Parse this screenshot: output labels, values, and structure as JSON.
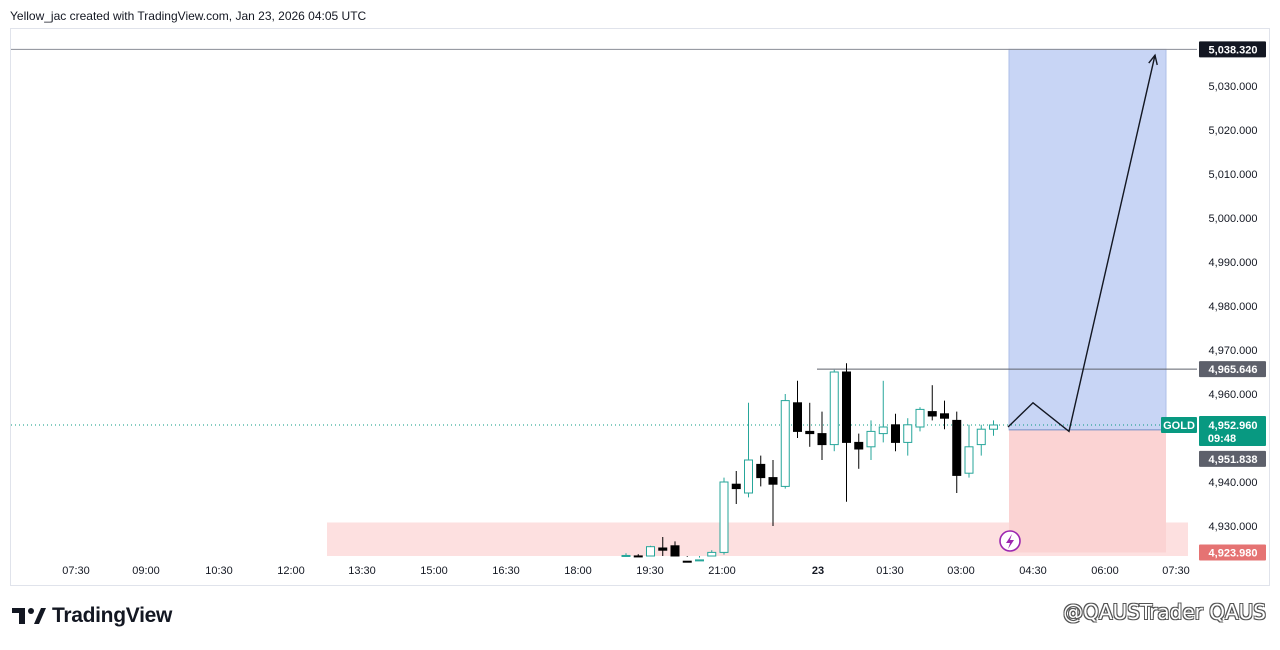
{
  "header": {
    "attribution": "Yellow_jac created with TradingView.com, Jan 23, 2026 04:05 UTC"
  },
  "footer": {
    "brand": "TradingView",
    "watermark": "@QAUSTrader QAUS"
  },
  "colors": {
    "up": "#26a69a",
    "down": "#000000",
    "reward": "#c8d5f5",
    "risk": "#fbd3d3",
    "zone": "#fde0e0",
    "price_tag": "#089981",
    "target_tag": "#131722",
    "level_tag": "#5d606b"
  },
  "chart_data": {
    "type": "candlestick",
    "symbol": "GOLD",
    "y_axis": {
      "ticks": [
        "5,030.000",
        "5,020.000",
        "5,010.000",
        "5,000.000",
        "4,990.000",
        "4,980.000",
        "4,970.000",
        "4,960.000",
        "4,940.000",
        "4,930.000"
      ],
      "tick_values": [
        5030,
        5020,
        5010,
        5000,
        4990,
        4980,
        4970,
        4960,
        4940,
        4930
      ],
      "range": [
        4921.2,
        5040
      ]
    },
    "x_axis": {
      "ticks": [
        "07:30",
        "09:00",
        "10:30",
        "12:00",
        "13:30",
        "15:00",
        "16:30",
        "18:00",
        "19:30",
        "21:00",
        "23",
        "01:30",
        "03:00",
        "04:30",
        "06:00",
        "07:30"
      ],
      "bold": [
        "23"
      ]
    },
    "price_tags": {
      "target": "5,038.320",
      "level": "4,965.646",
      "current_symbol": "GOLD",
      "current": "4,952.960",
      "countdown": "09:48",
      "entry": "4,951.838",
      "stop": "4,923.980"
    },
    "levels": {
      "target": 5038.32,
      "level": 4965.646,
      "current": 4952.96,
      "entry": 4951.838,
      "stop": 4923.98
    },
    "zone": {
      "low": 4921.2,
      "high": 4930.8
    },
    "projection": [
      [
        0,
        4952.5
      ],
      [
        1,
        4958
      ],
      [
        2,
        4951.5
      ],
      [
        3,
        5037
      ]
    ],
    "candles": [
      {
        "o": 4922.5,
        "h": 4923.8,
        "l": 4921.2,
        "c": 4923.3
      },
      {
        "o": 4923.2,
        "h": 4923.6,
        "l": 4921.2,
        "c": 4921.5
      },
      {
        "o": 4921.5,
        "h": 4925.5,
        "l": 4921.2,
        "c": 4925.3
      },
      {
        "o": 4925.0,
        "h": 4927.5,
        "l": 4922.5,
        "c": 4924.5
      },
      {
        "o": 4925.5,
        "h": 4926.5,
        "l": 4921.2,
        "c": 4922.5
      },
      {
        "o": 4922.0,
        "h": 4923.0,
        "l": 4921.2,
        "c": 4921.6
      },
      {
        "o": 4921.4,
        "h": 4922.8,
        "l": 4921.2,
        "c": 4922.3
      },
      {
        "o": 4922.0,
        "h": 4924.5,
        "l": 4921.2,
        "c": 4924.0
      },
      {
        "o": 4924.0,
        "h": 4941.0,
        "l": 4923.5,
        "c": 4940.0
      },
      {
        "o": 4939.5,
        "h": 4942.5,
        "l": 4935.0,
        "c": 4938.5
      },
      {
        "o": 4937.5,
        "h": 4958.0,
        "l": 4936.5,
        "c": 4945.0
      },
      {
        "o": 4944.0,
        "h": 4946.0,
        "l": 4939.0,
        "c": 4941.0
      },
      {
        "o": 4941.0,
        "h": 4945.0,
        "l": 4930.0,
        "c": 4939.5
      },
      {
        "o": 4939.0,
        "h": 4960.0,
        "l": 4938.5,
        "c": 4958.5
      },
      {
        "o": 4958.0,
        "h": 4963.0,
        "l": 4950.0,
        "c": 4951.5
      },
      {
        "o": 4951.5,
        "h": 4958.0,
        "l": 4948.0,
        "c": 4951.0
      },
      {
        "o": 4951.0,
        "h": 4956.0,
        "l": 4945.0,
        "c": 4948.5
      },
      {
        "o": 4948.5,
        "h": 4965.5,
        "l": 4947.0,
        "c": 4965.0
      },
      {
        "o": 4965.0,
        "h": 4967.0,
        "l": 4935.5,
        "c": 4949.0
      },
      {
        "o": 4949.0,
        "h": 4951.0,
        "l": 4943.0,
        "c": 4947.5
      },
      {
        "o": 4948.0,
        "h": 4954.0,
        "l": 4945.0,
        "c": 4951.5
      },
      {
        "o": 4951.0,
        "h": 4963.0,
        "l": 4949.0,
        "c": 4952.5
      },
      {
        "o": 4953.0,
        "h": 4955.5,
        "l": 4947.0,
        "c": 4949.0
      },
      {
        "o": 4949.0,
        "h": 4954.5,
        "l": 4946.0,
        "c": 4953.0
      },
      {
        "o": 4952.5,
        "h": 4957.0,
        "l": 4951.5,
        "c": 4956.5
      },
      {
        "o": 4956.0,
        "h": 4962.0,
        "l": 4954.0,
        "c": 4955.0
      },
      {
        "o": 4955.5,
        "h": 4958.5,
        "l": 4952.0,
        "c": 4954.5
      },
      {
        "o": 4954.0,
        "h": 4956.0,
        "l": 4937.5,
        "c": 4941.5
      },
      {
        "o": 4942.0,
        "h": 4953.0,
        "l": 4941.0,
        "c": 4948.0
      },
      {
        "o": 4948.5,
        "h": 4953.0,
        "l": 4946.0,
        "c": 4952.0
      },
      {
        "o": 4952.0,
        "h": 4954.0,
        "l": 4950.5,
        "c": 4952.96
      }
    ],
    "grid": false
  }
}
